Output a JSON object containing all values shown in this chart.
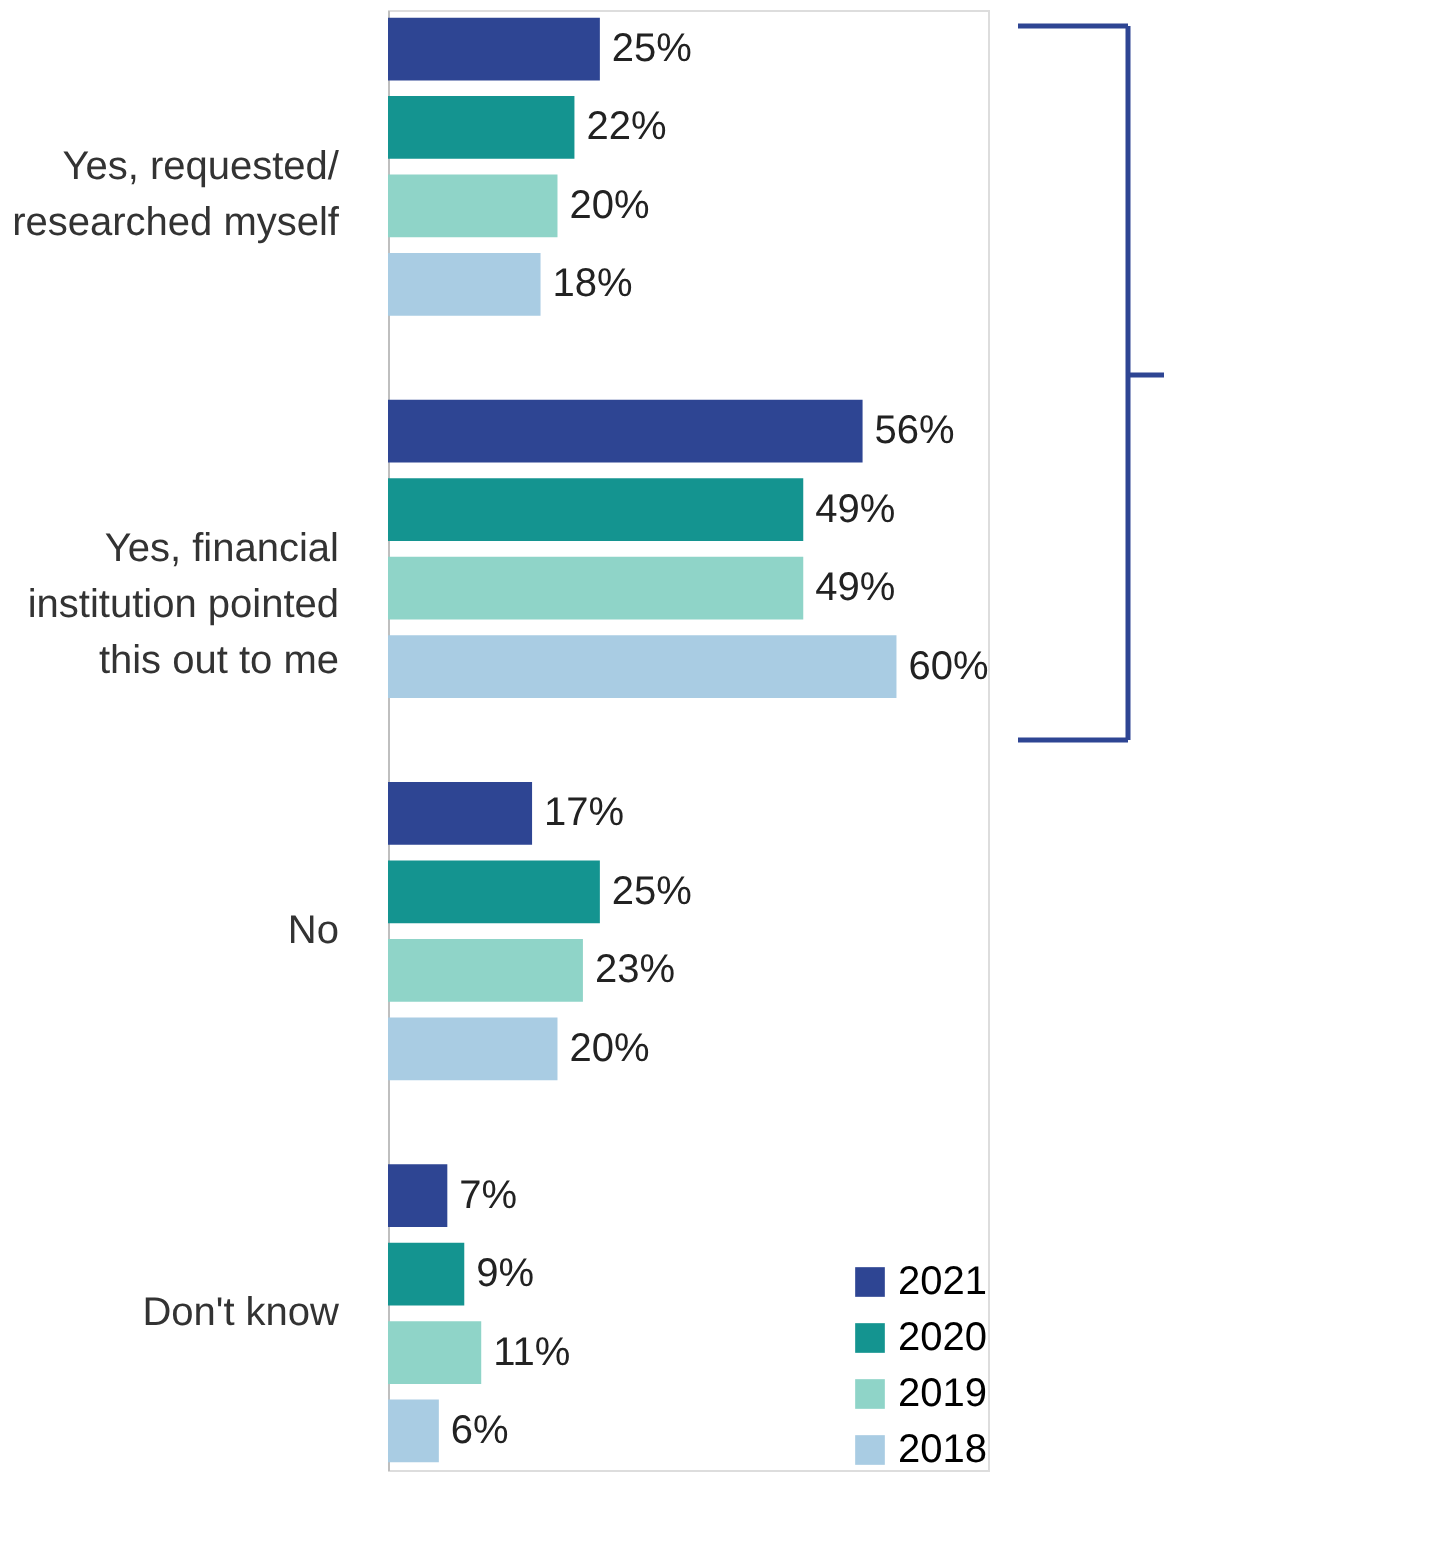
{
  "chart_data": {
    "type": "bar",
    "orientation": "horizontal",
    "legend": "bottom right",
    "categories": [
      "Yes, requested/ researched myself",
      "Yes, financial institution pointed this out to me",
      "No",
      "Don't know"
    ],
    "series": [
      {
        "name": "2021",
        "color": "#2e4593",
        "values": [
          25,
          56,
          17,
          7
        ],
        "value_labels": [
          "25%",
          "56%",
          "17%",
          "7%"
        ]
      },
      {
        "name": "2020",
        "color": "#149490",
        "values": [
          22,
          49,
          25,
          9
        ],
        "value_labels": [
          "22%",
          "49%",
          "25%",
          "9%"
        ]
      },
      {
        "name": "2019",
        "color": "#8fd4c8",
        "values": [
          20,
          49,
          23,
          11
        ],
        "value_labels": [
          "20%",
          "49%",
          "23%",
          "11%"
        ]
      },
      {
        "name": "2018",
        "color": "#a9cce3",
        "values": [
          18,
          60,
          20,
          6
        ],
        "value_labels": [
          "18%",
          "60%",
          "20%",
          "6%"
        ]
      }
    ]
  }
}
